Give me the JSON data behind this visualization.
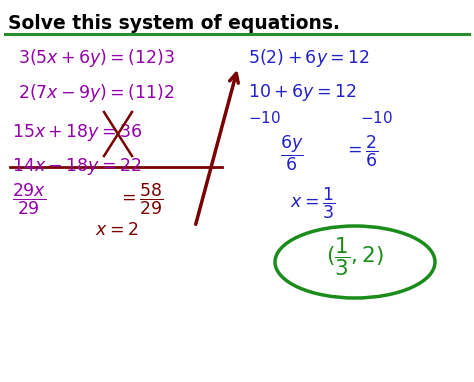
{
  "background_color": "#ffffff",
  "title": "Solve this system of equations.",
  "title_color": "#000000",
  "title_fontsize": 13.5,
  "green_line_color": "#2a8c2a",
  "purple": "#9400aa",
  "blue": "#2222cc",
  "dark_red": "#7a0000",
  "green": "#1a8c1a",
  "fs": 12.5,
  "fs_small": 11
}
